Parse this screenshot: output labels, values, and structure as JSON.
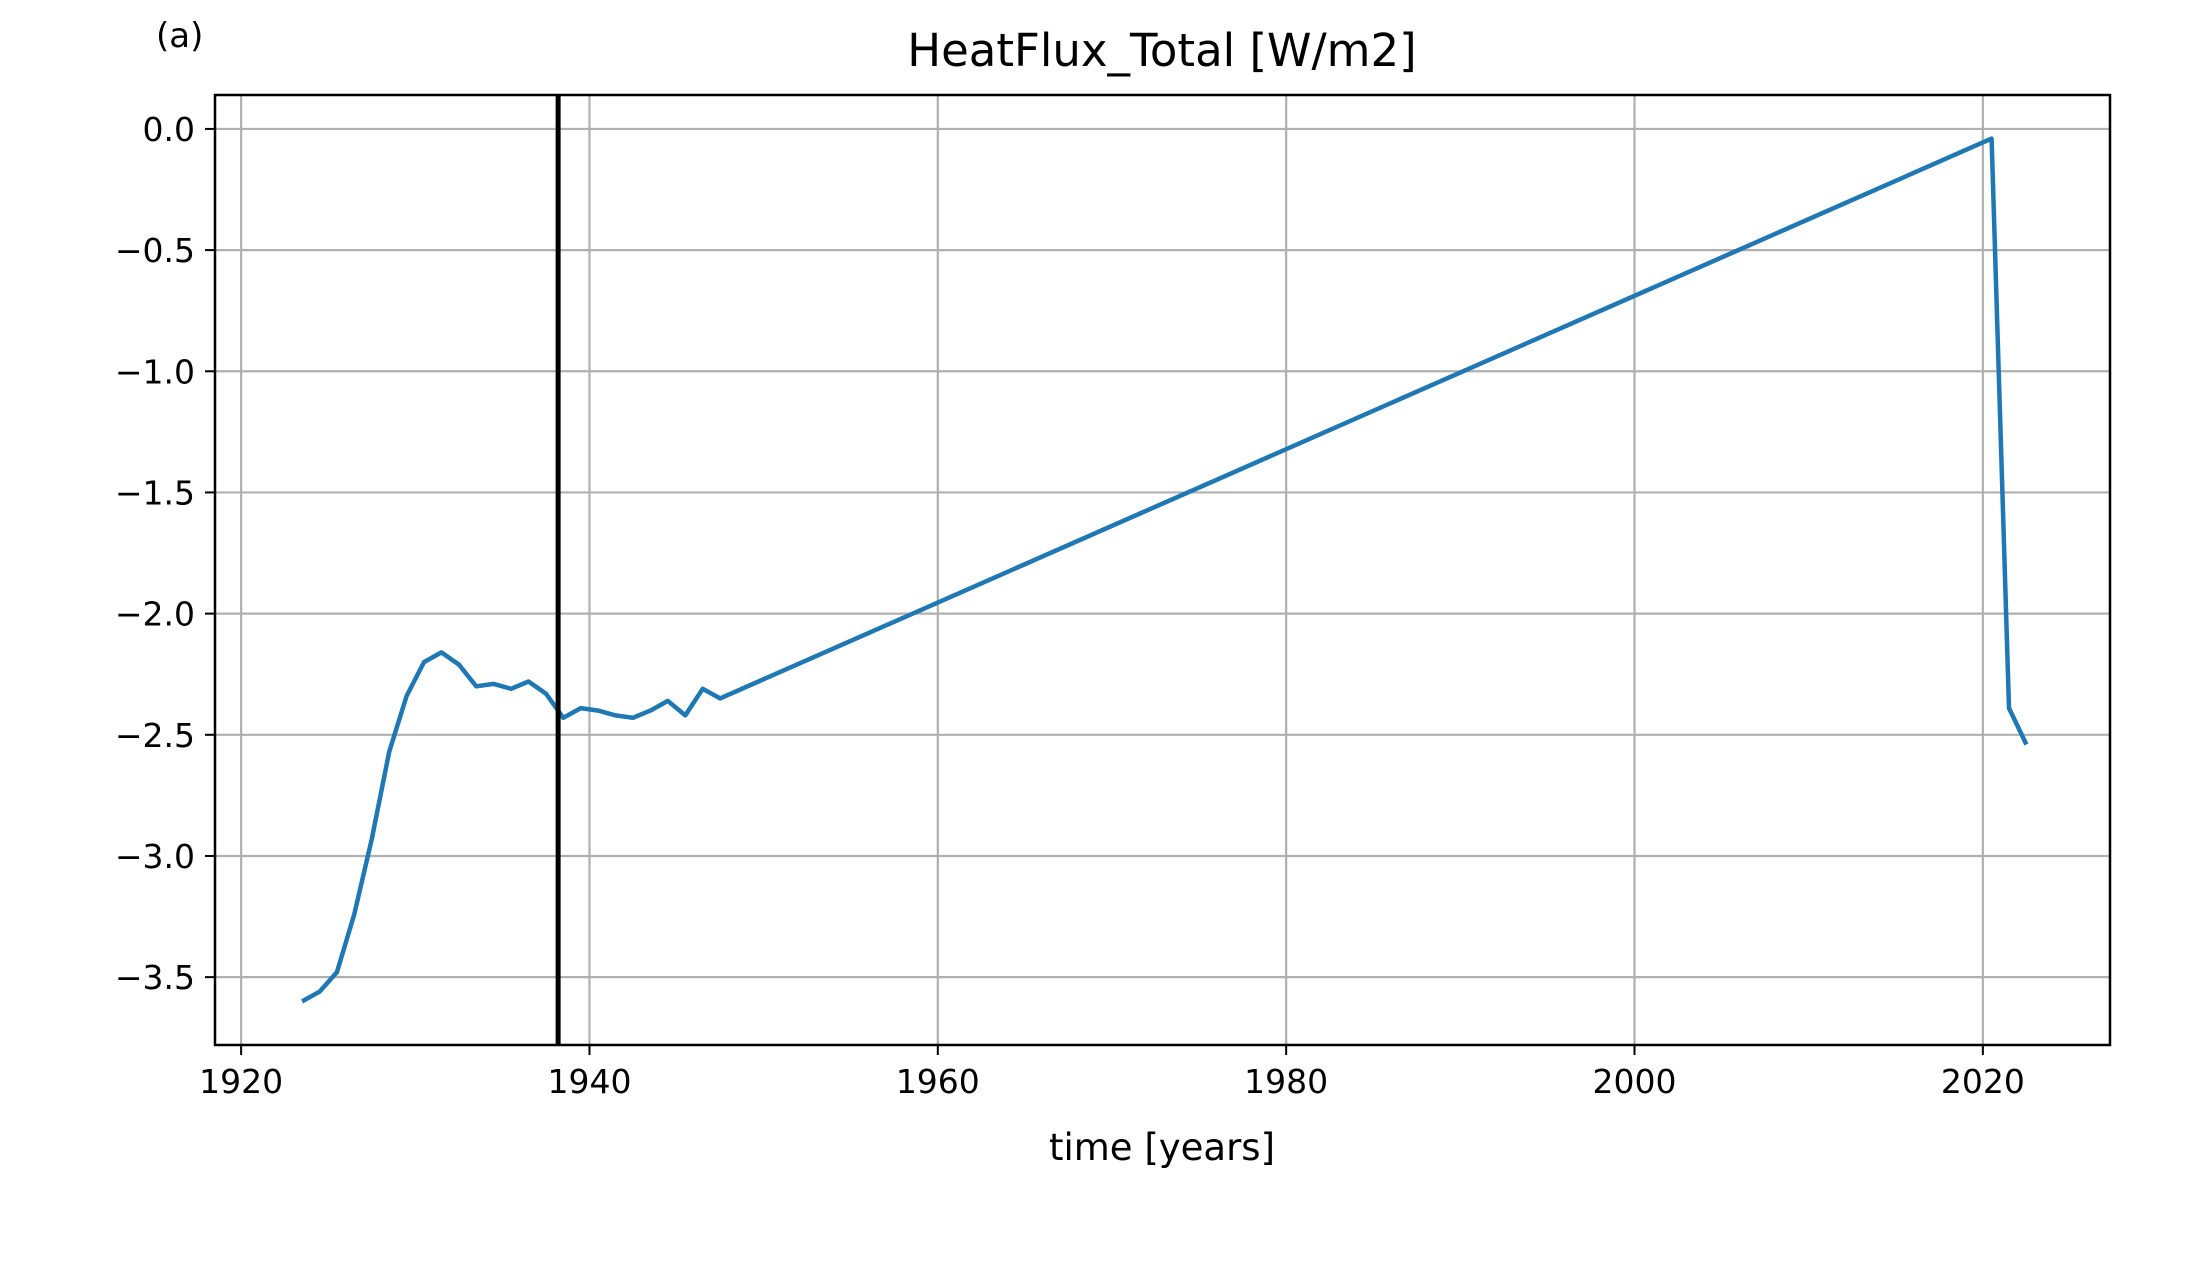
{
  "panel_label": "(a)",
  "colors": {
    "series": "#1f77b4",
    "grid": "#b0b0b0",
    "marker_line": "#000000"
  },
  "chart_data": {
    "type": "line",
    "title": "HeatFlux_Total [W/m2]",
    "xlabel": "time [years]",
    "ylabel": "",
    "xlim": [
      1918.5,
      2027.3
    ],
    "ylim": [
      -3.78,
      0.14
    ],
    "xticks": [
      1920,
      1940,
      1960,
      1980,
      2000,
      2020
    ],
    "xtick_labels": [
      "1920",
      "1940",
      "1960",
      "1980",
      "2000",
      "2020"
    ],
    "yticks": [
      0.0,
      -0.5,
      -1.0,
      -1.5,
      -2.0,
      -2.5,
      -3.0,
      -3.5
    ],
    "ytick_labels": [
      "0.0",
      "−0.5",
      "−1.0",
      "−1.5",
      "−2.0",
      "−2.5",
      "−3.0",
      "−3.5"
    ],
    "grid": true,
    "vertical_line_x": 1938.2,
    "series": [
      {
        "x": [
          1923.5,
          1924.5,
          1925.5,
          1926.5,
          1927.5,
          1928.5,
          1929.5,
          1930.5,
          1931.5,
          1932.5,
          1933.5,
          1934.5,
          1935.5,
          1936.5,
          1937.5,
          1938.5,
          1939.5,
          1940.5,
          1941.5,
          1942.5,
          1943.5,
          1944.5,
          1945.5,
          1946.5,
          1947.5,
          2020.5,
          2021.5,
          2022.5
        ],
        "y": [
          -3.6,
          -3.56,
          -3.48,
          -3.24,
          -2.93,
          -2.57,
          -2.34,
          -2.2,
          -2.16,
          -2.21,
          -2.3,
          -2.29,
          -2.31,
          -2.28,
          -2.33,
          -2.43,
          -2.39,
          -2.4,
          -2.42,
          -2.43,
          -2.4,
          -2.36,
          -2.42,
          -2.31,
          -2.35,
          -0.04,
          -2.39,
          -2.54
        ]
      }
    ]
  }
}
